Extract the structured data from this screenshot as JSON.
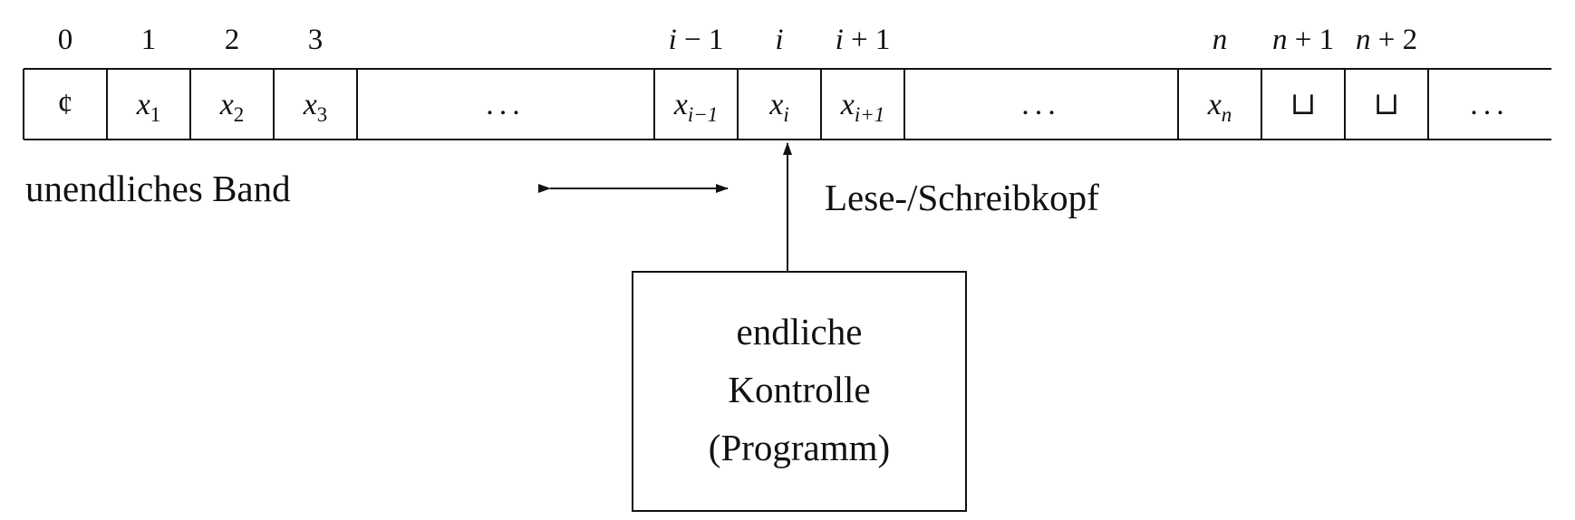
{
  "tape": {
    "label": "unendliches Band",
    "indices": [
      {
        "base": "0",
        "op": "",
        "off": ""
      },
      {
        "base": "1",
        "op": "",
        "off": ""
      },
      {
        "base": "2",
        "op": "",
        "off": ""
      },
      {
        "base": "3",
        "op": "",
        "off": ""
      },
      {
        "base": "i",
        "op": "−",
        "off": "1"
      },
      {
        "base": "i",
        "op": "",
        "off": ""
      },
      {
        "base": "i",
        "op": "+",
        "off": "1"
      },
      {
        "base": "n",
        "op": "",
        "off": ""
      },
      {
        "base": "n",
        "op": "+",
        "off": "1"
      },
      {
        "base": "n",
        "op": "+",
        "off": "2"
      }
    ],
    "cells": [
      {
        "kind": "symbol",
        "text": "¢"
      },
      {
        "kind": "var",
        "var": "x",
        "sub": "1"
      },
      {
        "kind": "var",
        "var": "x",
        "sub": "2"
      },
      {
        "kind": "var",
        "var": "x",
        "sub": "3"
      },
      {
        "kind": "ellipsis",
        "text": "..."
      },
      {
        "kind": "var",
        "var": "x",
        "sub": "i−1"
      },
      {
        "kind": "var",
        "var": "x",
        "sub": "i"
      },
      {
        "kind": "var",
        "var": "x",
        "sub": "i+1"
      },
      {
        "kind": "ellipsis",
        "text": "..."
      },
      {
        "kind": "var",
        "var": "x",
        "sub": "n"
      },
      {
        "kind": "blank",
        "text": "⊔"
      },
      {
        "kind": "blank",
        "text": "⊔"
      },
      {
        "kind": "ellipsis",
        "text": "..."
      }
    ]
  },
  "head": {
    "label": "Lese-/Schreibkopf"
  },
  "control": {
    "lines": [
      "endliche",
      "Kontrolle",
      "(Programm)"
    ]
  }
}
